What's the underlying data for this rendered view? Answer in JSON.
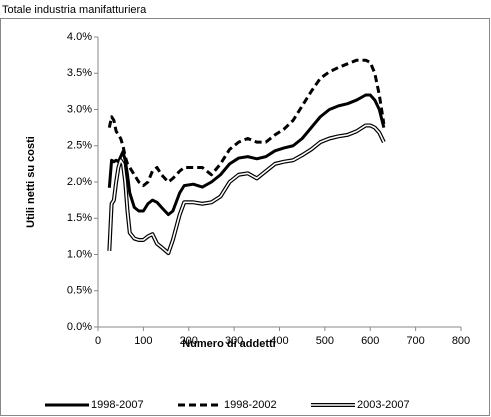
{
  "chart_data": {
    "type": "line",
    "title": "Totale industria manifatturiera",
    "x_label": "Numero di addetti",
    "y_label": "Utili netti su costi",
    "x": [
      25,
      30,
      35,
      40,
      45,
      50,
      55,
      60,
      65,
      70,
      80,
      90,
      100,
      110,
      120,
      130,
      140,
      155,
      165,
      180,
      190,
      210,
      230,
      250,
      270,
      290,
      310,
      330,
      350,
      370,
      390,
      410,
      430,
      450,
      470,
      490,
      510,
      530,
      550,
      570,
      590,
      600,
      610,
      620,
      630
    ],
    "series": [
      {
        "name": "1998-2007",
        "color": "#000000",
        "style": "solid",
        "values": [
          1.92,
          2.3,
          2.28,
          2.3,
          2.28,
          2.35,
          2.42,
          2.3,
          2.1,
          1.85,
          1.65,
          1.6,
          1.6,
          1.7,
          1.75,
          1.72,
          1.65,
          1.55,
          1.6,
          1.85,
          1.95,
          1.97,
          1.93,
          2.0,
          2.1,
          2.25,
          2.33,
          2.35,
          2.32,
          2.35,
          2.43,
          2.47,
          2.5,
          2.6,
          2.75,
          2.9,
          3.0,
          3.05,
          3.08,
          3.13,
          3.2,
          3.2,
          3.13,
          3.0,
          2.75
        ]
      },
      {
        "name": "1998-2002",
        "color": "#000000",
        "style": "dashed",
        "values": [
          2.75,
          2.9,
          2.85,
          2.7,
          2.65,
          2.6,
          2.5,
          2.35,
          2.25,
          2.2,
          2.1,
          2.0,
          1.95,
          2.0,
          2.15,
          2.2,
          2.1,
          2.0,
          2.05,
          2.15,
          2.2,
          2.2,
          2.2,
          2.1,
          2.25,
          2.45,
          2.55,
          2.6,
          2.55,
          2.55,
          2.65,
          2.73,
          2.85,
          3.05,
          3.25,
          3.43,
          3.52,
          3.58,
          3.63,
          3.68,
          3.68,
          3.65,
          3.5,
          3.2,
          2.8
        ]
      },
      {
        "name": "2003-2007",
        "color": "#000000",
        "style": "double",
        "values": [
          1.05,
          1.7,
          1.75,
          2.0,
          2.2,
          2.3,
          2.25,
          2.0,
          1.6,
          1.3,
          1.22,
          1.2,
          1.2,
          1.25,
          1.28,
          1.15,
          1.1,
          1.02,
          1.2,
          1.55,
          1.72,
          1.72,
          1.7,
          1.72,
          1.8,
          2.0,
          2.1,
          2.12,
          2.05,
          2.15,
          2.25,
          2.28,
          2.3,
          2.37,
          2.45,
          2.55,
          2.6,
          2.63,
          2.65,
          2.7,
          2.78,
          2.78,
          2.75,
          2.68,
          2.55
        ]
      }
    ],
    "xlim": [
      0,
      800
    ],
    "xticks": [
      0,
      100,
      200,
      300,
      400,
      500,
      600,
      700,
      800
    ],
    "ylim": [
      0,
      4
    ],
    "yticks": [
      {
        "value": 0,
        "label": "0.0%"
      },
      {
        "value": 0.5,
        "label": "0.5%"
      },
      {
        "value": 1,
        "label": "1.0%"
      },
      {
        "value": 1.5,
        "label": "1.5%"
      },
      {
        "value": 2,
        "label": "2.0%"
      },
      {
        "value": 2.5,
        "label": "2.5%"
      },
      {
        "value": 3,
        "label": "3.0%"
      },
      {
        "value": 3.5,
        "label": "3.5%"
      },
      {
        "value": 4,
        "label": "4.0%"
      }
    ],
    "grid": false,
    "legend": "bottom"
  }
}
